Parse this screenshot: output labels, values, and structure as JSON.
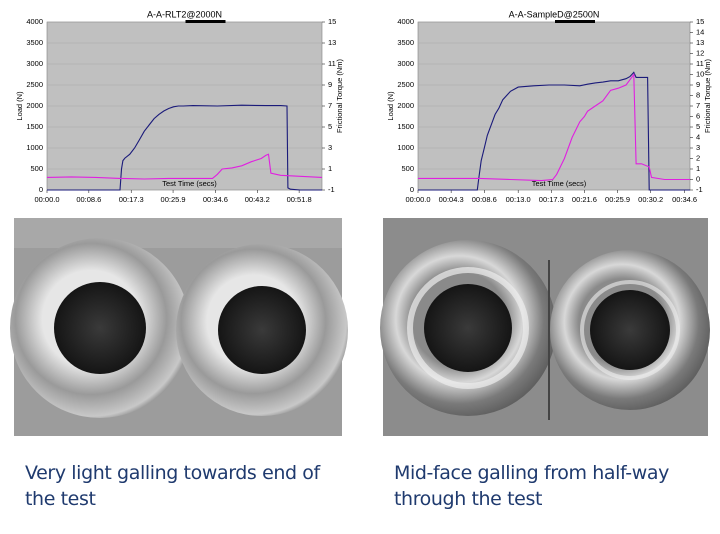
{
  "chart_data": [
    {
      "type": "line",
      "title": "A-A-RLT2@2000N",
      "xlabel": "Test Time (secs)",
      "ylabel": "Load (N)",
      "y2label": "Frictional Torque (Nm)",
      "xlim": [
        0,
        56.5
      ],
      "xticks": [
        {
          "value": 0,
          "label": "00:00.0"
        },
        {
          "value": 8.6,
          "label": "00:08.6"
        },
        {
          "value": 17.3,
          "label": "00:17.3"
        },
        {
          "value": 25.9,
          "label": "00:25.9"
        },
        {
          "value": 34.6,
          "label": "00:34.6"
        },
        {
          "value": 43.2,
          "label": "00:43.2"
        },
        {
          "value": 51.8,
          "label": "00:51.8"
        }
      ],
      "ylim": [
        0,
        4000
      ],
      "yticks": [
        0,
        500,
        1000,
        1500,
        2000,
        2500,
        3000,
        3500,
        4000
      ],
      "y2lim": [
        -1,
        15
      ],
      "y2ticks": [
        -1,
        1,
        3,
        5,
        7,
        9,
        11,
        13,
        15
      ],
      "grid": true,
      "series": [
        {
          "color": "#1a1a7a",
          "x": [
            0,
            5,
            10,
            15,
            15.3,
            15.6,
            16,
            17,
            18,
            19,
            20,
            21,
            22,
            23,
            24,
            25,
            26,
            27,
            28,
            30,
            35,
            40,
            45,
            48,
            49.3,
            49.5,
            50,
            52,
            56.5
          ],
          "values": [
            0,
            0,
            0,
            0,
            500,
            700,
            760,
            850,
            1000,
            1200,
            1400,
            1550,
            1700,
            1800,
            1880,
            1940,
            1980,
            2000,
            2000,
            2010,
            2000,
            2020,
            2010,
            2010,
            2000,
            50,
            20,
            0,
            0
          ]
        },
        {
          "color": "#e020e0",
          "axis": "y2",
          "x": [
            0,
            5,
            10,
            15,
            20,
            25,
            30,
            34,
            35,
            36,
            38,
            40,
            42,
            44,
            45,
            45.5,
            46,
            48,
            52,
            56.5
          ],
          "values": [
            0.2,
            0.25,
            0.2,
            0.1,
            0.05,
            0.1,
            0.1,
            0.1,
            0.5,
            1,
            1.1,
            1.3,
            1.7,
            2,
            2.3,
            2.4,
            0.6,
            0.4,
            0.3,
            0.2
          ]
        }
      ]
    },
    {
      "type": "line",
      "title": "A-A-SampleD@2500N",
      "xlabel": "Test Time (secs)",
      "ylabel": "Load (N)",
      "y2label": "Frictional Torque (Nm)",
      "xlim": [
        0,
        35.3
      ],
      "xticks": [
        {
          "value": 0,
          "label": "00:00.0"
        },
        {
          "value": 4.3,
          "label": "00:04.3"
        },
        {
          "value": 8.6,
          "label": "00:08.6"
        },
        {
          "value": 13,
          "label": "00:13.0"
        },
        {
          "value": 17.3,
          "label": "00:17.3"
        },
        {
          "value": 21.6,
          "label": "00:21.6"
        },
        {
          "value": 25.9,
          "label": "00:25.9"
        },
        {
          "value": 30.2,
          "label": "00:30.2"
        },
        {
          "value": 34.6,
          "label": "00:34.6"
        }
      ],
      "ylim": [
        0,
        4000
      ],
      "yticks": [
        0,
        500,
        1000,
        1500,
        2000,
        2500,
        3000,
        3500,
        4000
      ],
      "y2lim": [
        -1,
        15
      ],
      "y2ticks": [
        -1,
        0,
        1,
        2,
        3,
        4,
        5,
        6,
        7,
        8,
        9,
        10,
        11,
        12,
        13,
        14,
        15
      ],
      "grid": true,
      "series": [
        {
          "color": "#1a1a7a",
          "x": [
            0,
            4,
            7.7,
            7.9,
            8.2,
            8.6,
            9,
            9.5,
            10,
            10.5,
            11,
            12,
            13,
            15,
            17,
            19,
            21,
            22,
            23,
            24,
            25,
            26,
            27,
            27.5,
            28,
            28.3,
            29,
            29.8,
            30,
            32,
            35.3
          ],
          "values": [
            0,
            0,
            0,
            300,
            700,
            1000,
            1300,
            1550,
            1800,
            1950,
            2150,
            2350,
            2450,
            2480,
            2500,
            2500,
            2480,
            2520,
            2550,
            2570,
            2600,
            2600,
            2650,
            2700,
            2800,
            2680,
            2680,
            2680,
            0,
            0,
            0
          ]
        },
        {
          "color": "#e020e0",
          "axis": "y2",
          "x": [
            0,
            4,
            8,
            12,
            16,
            17.5,
            18,
            19,
            20,
            21,
            21.6,
            22,
            23,
            24,
            25,
            26,
            27,
            27.5,
            28,
            28.3,
            29,
            30,
            30.3,
            32,
            35.3
          ],
          "values": [
            0.1,
            0.1,
            0.1,
            0,
            -0.1,
            0,
            0.5,
            2,
            4,
            5.5,
            6,
            6.5,
            7,
            7.5,
            8.5,
            8.7,
            9,
            9.5,
            10,
            1.5,
            1.5,
            1.2,
            0.2,
            0,
            0
          ]
        }
      ]
    }
  ],
  "captions": [
    "Very light galling towards end of the test",
    "Mid-face galling from half-way through the test"
  ]
}
